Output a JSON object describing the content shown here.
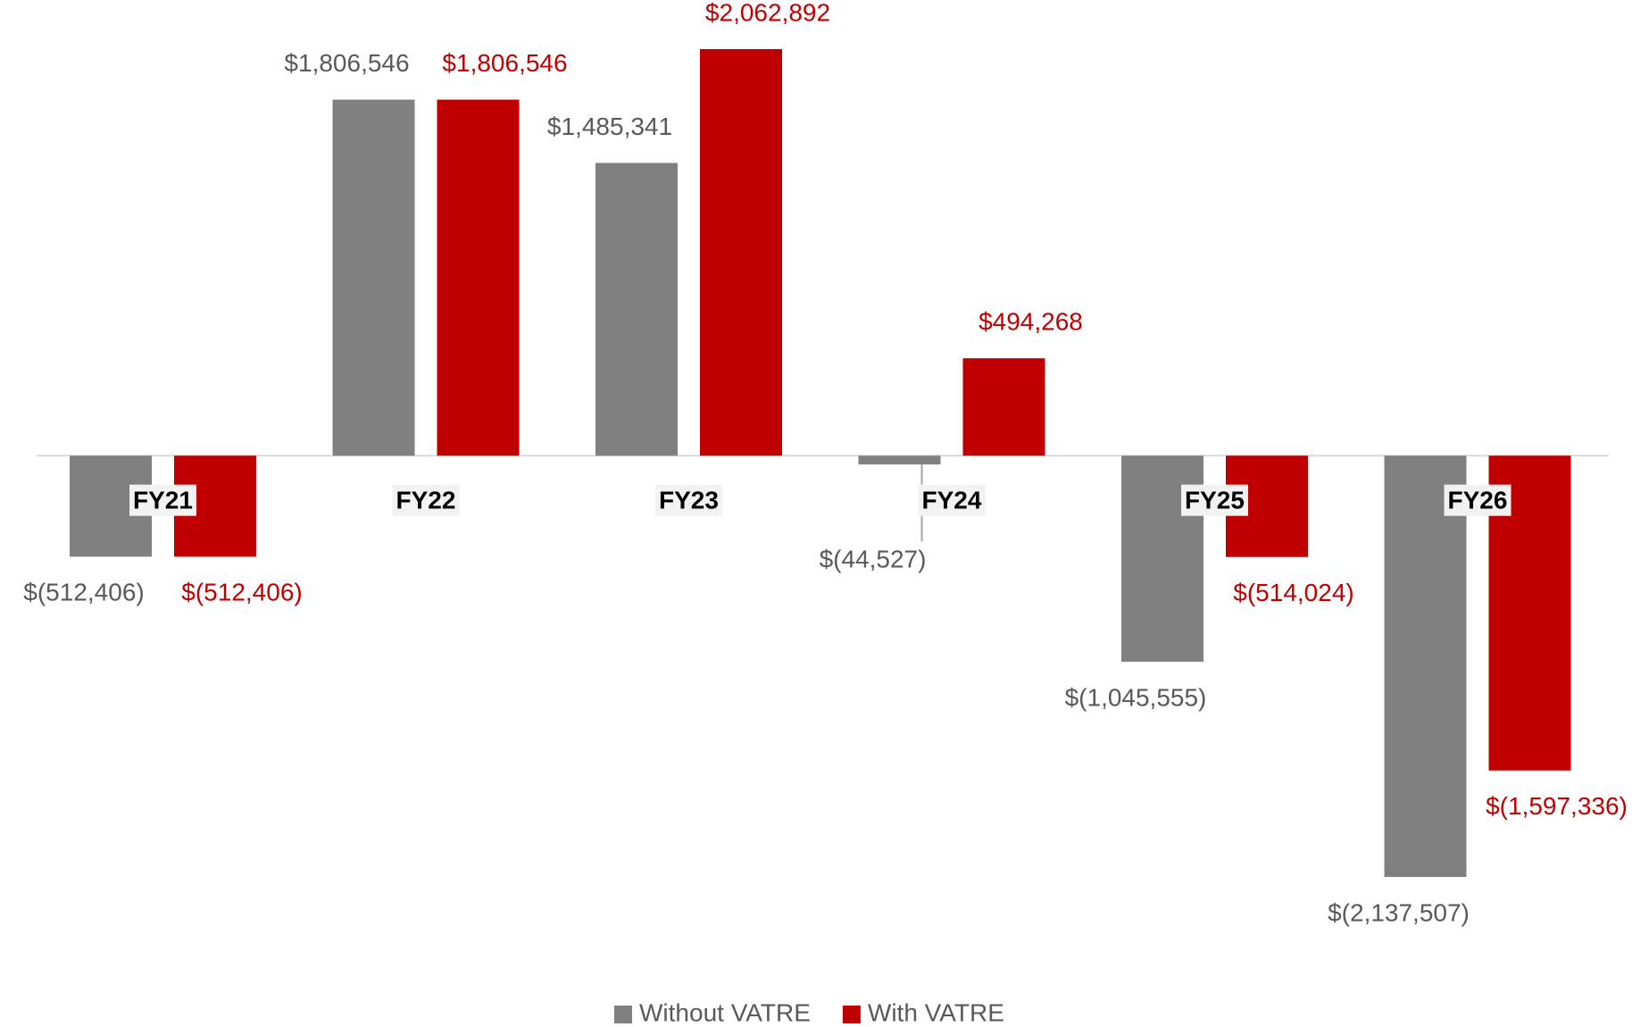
{
  "chart_data": {
    "type": "bar",
    "categories": [
      "FY21",
      "FY22",
      "FY23",
      "FY24",
      "FY25",
      "FY26"
    ],
    "series": [
      {
        "name": "Without VATRE",
        "color": "#808080",
        "values": [
          -512406,
          1806546,
          1485341,
          -44527,
          -1045555,
          -2137507
        ],
        "value_labels": [
          "$(512,406)",
          "$1,806,546",
          "$1,485,341",
          "$(44,527)",
          "$(1,045,555)",
          "$(2,137,507)"
        ]
      },
      {
        "name": "With VATRE",
        "color": "#c00000",
        "values": [
          -512406,
          1806546,
          2062892,
          494268,
          -514024,
          -1597336
        ],
        "value_labels": [
          "$(512,406)",
          "$1,806,546",
          "$2,062,892",
          "$494,268",
          "$(514,024)",
          "$(1,597,336)"
        ]
      }
    ],
    "legend": "bottom"
  }
}
